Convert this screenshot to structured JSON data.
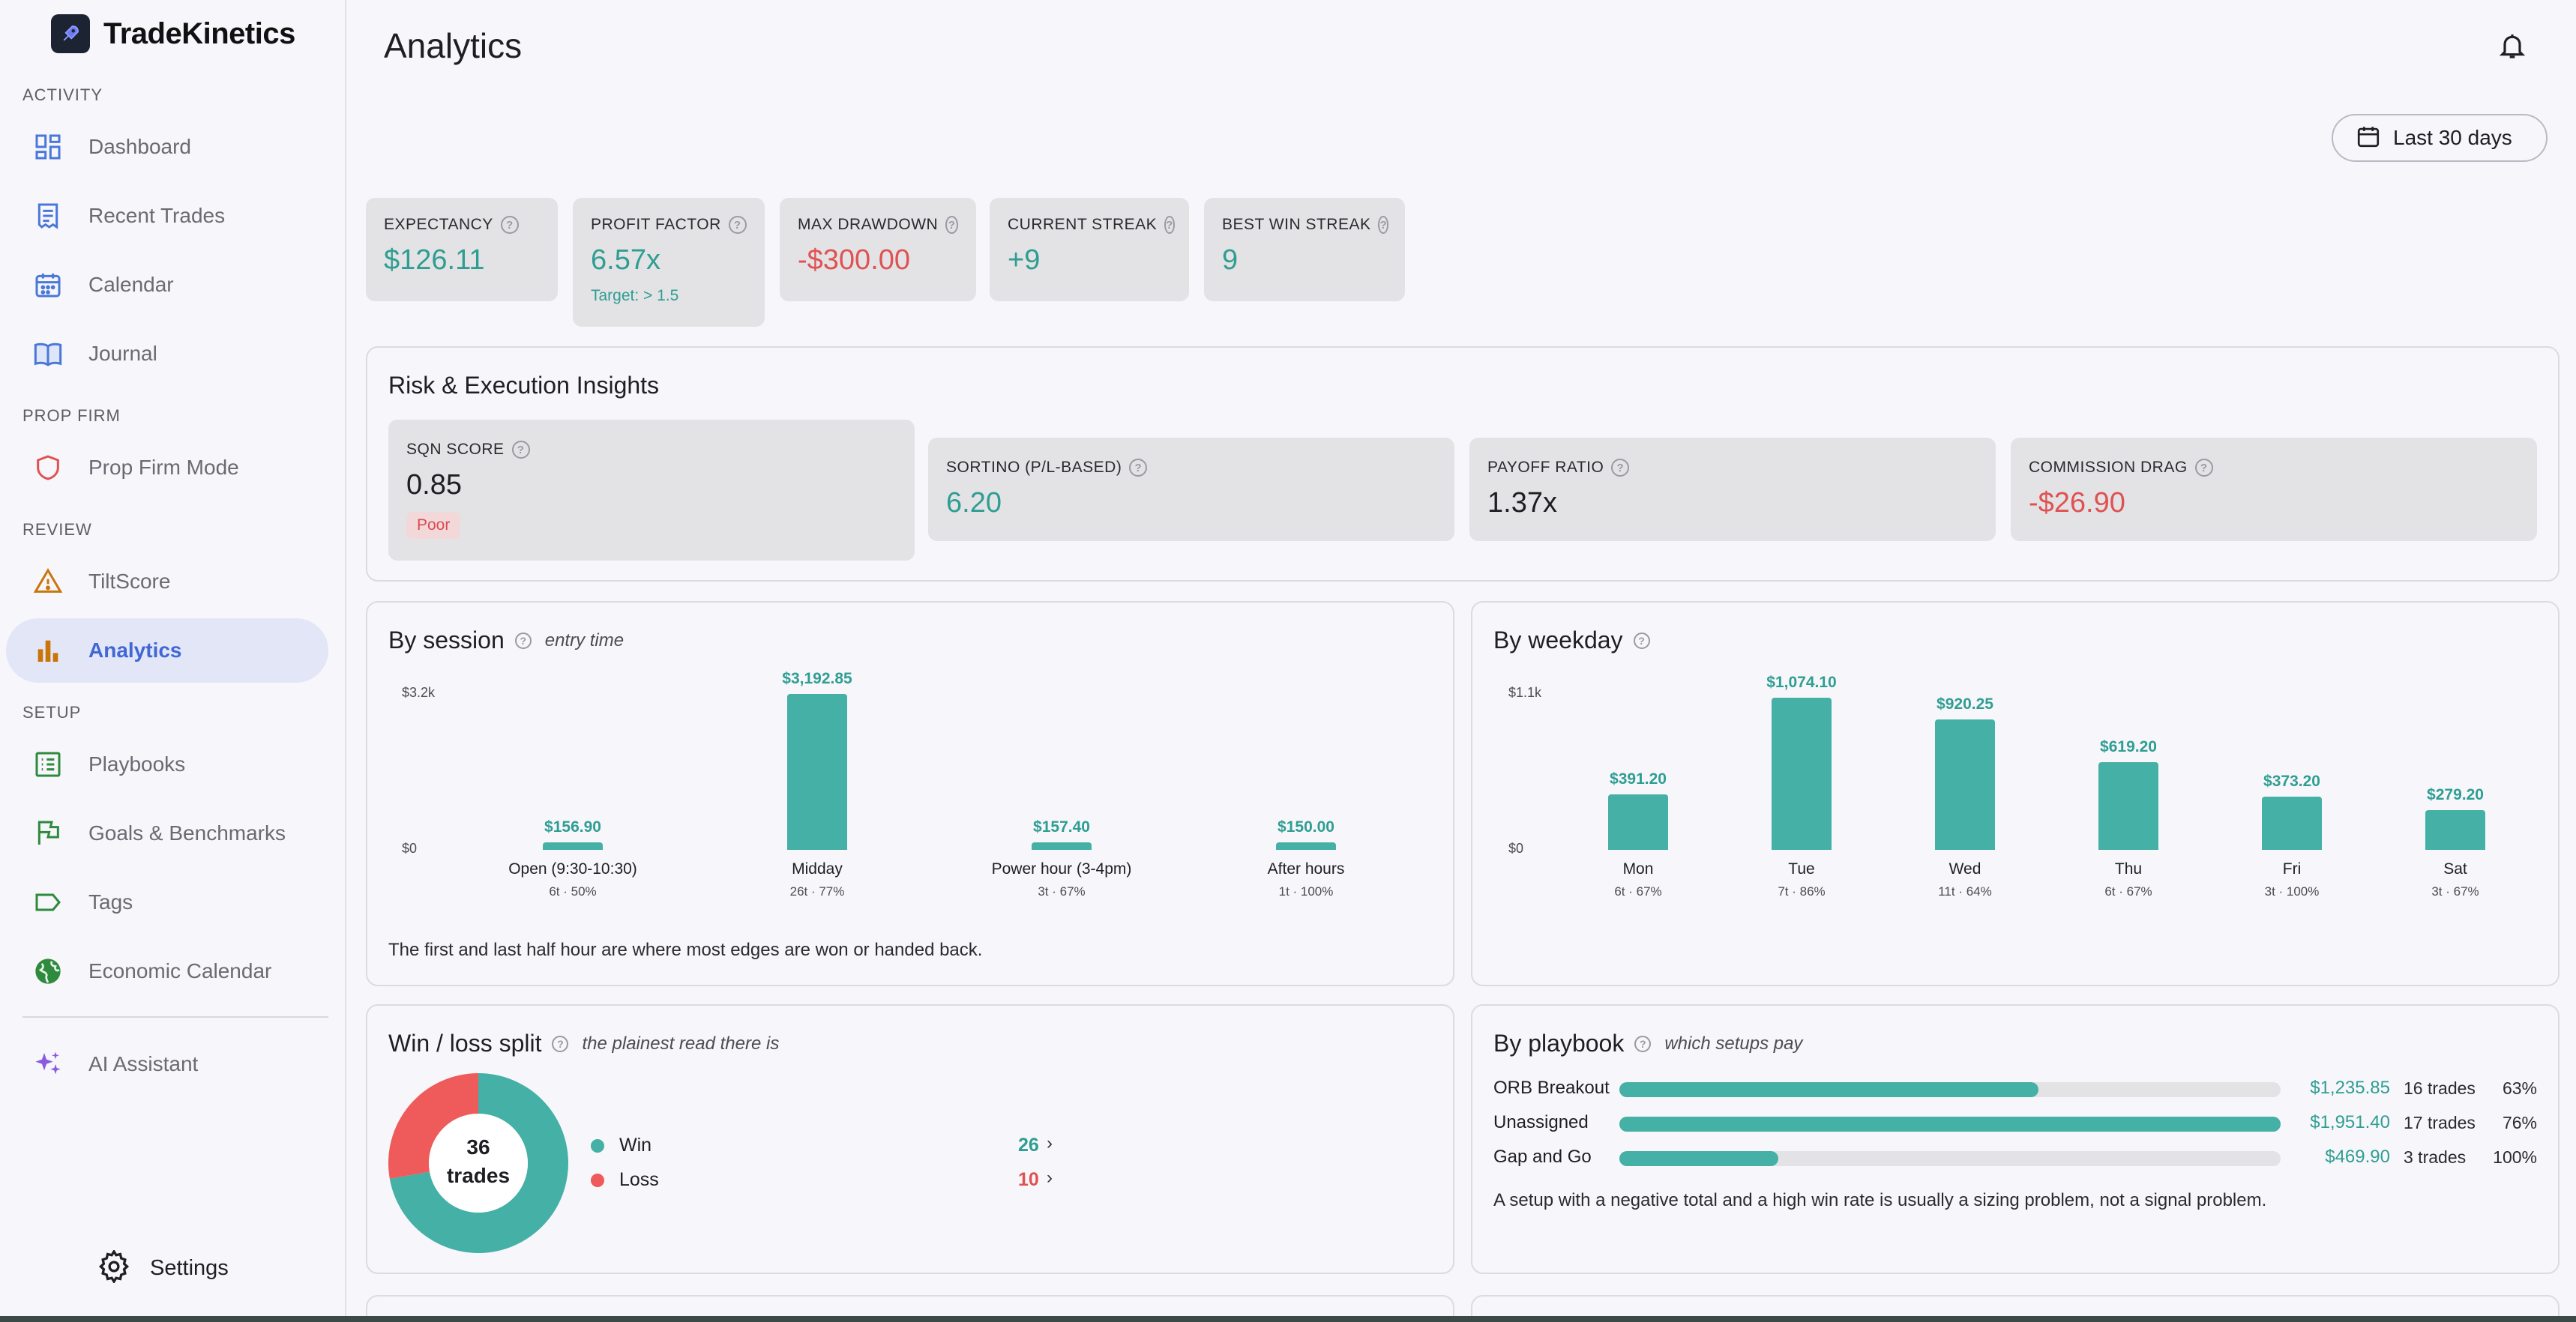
{
  "app": {
    "name": "TradeKinetics"
  },
  "sidebar": {
    "sections": [
      {
        "label": "ACTIVITY",
        "items": [
          {
            "label": "Dashboard",
            "icon": "dashboard-icon"
          },
          {
            "label": "Recent Trades",
            "icon": "receipt-icon"
          },
          {
            "label": "Calendar",
            "icon": "calendar-icon"
          },
          {
            "label": "Journal",
            "icon": "book-icon"
          }
        ]
      },
      {
        "label": "PROP FIRM",
        "items": [
          {
            "label": "Prop Firm Mode",
            "icon": "shield-icon"
          }
        ]
      },
      {
        "label": "REVIEW",
        "items": [
          {
            "label": "TiltScore",
            "icon": "warning-icon"
          },
          {
            "label": "Analytics",
            "icon": "bar-chart-icon",
            "active": true
          }
        ]
      },
      {
        "label": "SETUP",
        "items": [
          {
            "label": "Playbooks",
            "icon": "list-icon"
          },
          {
            "label": "Goals & Benchmarks",
            "icon": "flag-icon"
          },
          {
            "label": "Tags",
            "icon": "tag-icon"
          },
          {
            "label": "Economic Calendar",
            "icon": "globe-icon"
          }
        ]
      }
    ],
    "ai_assistant": "AI Assistant",
    "settings": "Settings"
  },
  "header": {
    "title": "Analytics",
    "date_range": "Last 30 days"
  },
  "stats": {
    "expectancy": {
      "label": "EXPECTANCY",
      "value": "$126.11"
    },
    "profit_factor": {
      "label": "PROFIT FACTOR",
      "value": "6.57x",
      "sub": "Target: > 1.5"
    },
    "max_drawdown": {
      "label": "MAX DRAWDOWN",
      "value": "-$300.00"
    },
    "current_streak": {
      "label": "CURRENT STREAK",
      "value": "+9"
    },
    "best_win_streak": {
      "label": "BEST WIN STREAK",
      "value": "9"
    }
  },
  "risk": {
    "title": "Risk & Execution Insights",
    "sqn": {
      "label": "SQN SCORE",
      "value": "0.85",
      "badge": "Poor"
    },
    "sortino": {
      "label": "SORTINO (P/L-BASED)",
      "value": "6.20"
    },
    "payoff": {
      "label": "PAYOFF RATIO",
      "value": "1.37x"
    },
    "commission": {
      "label": "COMMISSION DRAG",
      "value": "-$26.90"
    }
  },
  "session": {
    "title": "By session",
    "note": "entry time",
    "footnote": "The first and last half hour are where most edges are won or handed back.",
    "chart_data": {
      "type": "bar",
      "categories": [
        "Open (9:30-10:30)",
        "Midday",
        "Power hour (3-4pm)",
        "After hours"
      ],
      "values": [
        156.9,
        3192.85,
        157.4,
        150.0
      ],
      "value_labels": [
        "$156.90",
        "$3,192.85",
        "$157.40",
        "$150.00"
      ],
      "sub_labels": [
        "6t · 50%",
        "26t · 77%",
        "3t · 67%",
        "1t · 100%"
      ],
      "ytick_labels": [
        "$3.2k",
        "$0"
      ],
      "ylim": [
        0,
        3200
      ]
    }
  },
  "weekday": {
    "title": "By weekday",
    "chart_data": {
      "type": "bar",
      "categories": [
        "Mon",
        "Tue",
        "Wed",
        "Thu",
        "Fri",
        "Sat"
      ],
      "values": [
        391.2,
        1074.1,
        920.25,
        619.2,
        373.2,
        279.2
      ],
      "value_labels": [
        "$391.20",
        "$1,074.10",
        "$920.25",
        "$619.20",
        "$373.20",
        "$279.20"
      ],
      "sub_labels": [
        "6t · 67%",
        "7t · 86%",
        "11t · 64%",
        "6t · 67%",
        "3t · 100%",
        "3t · 67%"
      ],
      "ytick_labels": [
        "$1.1k",
        "$0"
      ],
      "ylim": [
        0,
        1100
      ]
    }
  },
  "winloss": {
    "title": "Win / loss split",
    "note": "the plainest read there is",
    "center_count": "36",
    "center_label": "trades",
    "chart_data": {
      "type": "pie",
      "categories": [
        "Win",
        "Loss"
      ],
      "values": [
        26,
        10
      ],
      "colors": [
        "#44b0a6",
        "#ef5a5a"
      ]
    },
    "win_count": "26",
    "loss_count": "10"
  },
  "playbook": {
    "title": "By playbook",
    "note": "which setups pay",
    "footnote": "A setup with a negative total and a high win rate is usually a sizing problem, not a signal problem.",
    "rows": [
      {
        "name": "ORB Breakout",
        "amount": "$1,235.85",
        "value": 1235.85,
        "trades": "16 trades",
        "rate": "63%"
      },
      {
        "name": "Unassigned",
        "amount": "$1,951.40",
        "value": 1951.4,
        "trades": "17 trades",
        "rate": "76%"
      },
      {
        "name": "Gap and Go",
        "amount": "$469.90",
        "value": 469.9,
        "trades": "3 trades",
        "rate": "100%"
      }
    ]
  }
}
